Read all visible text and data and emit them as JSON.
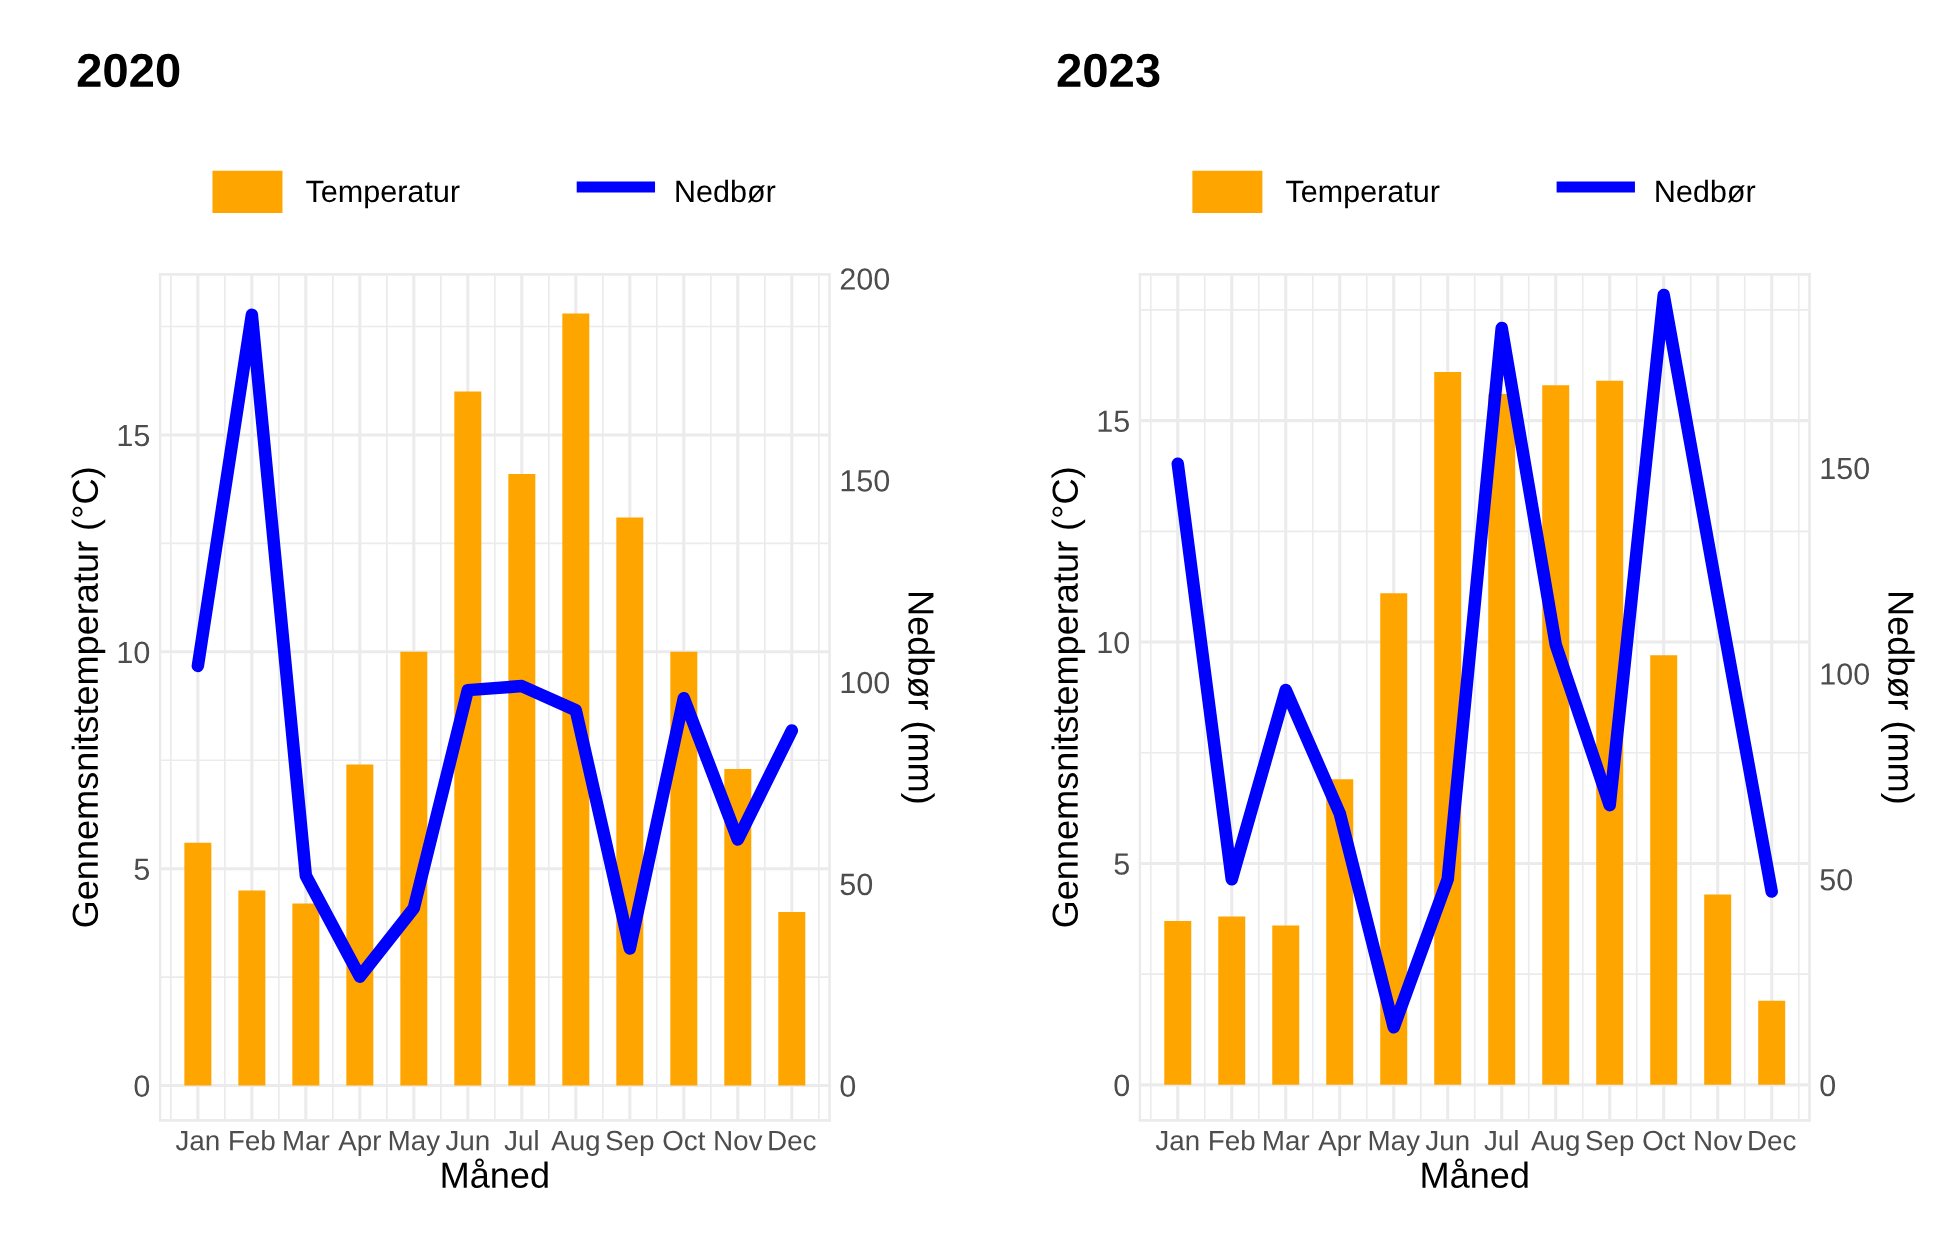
{
  "chart_data": [
    {
      "type": "bar",
      "title": "2020",
      "xlabel": "Måned",
      "ylabel": "Gennemsnitstemperatur (°C)",
      "y2label": "Nedbør (mm)",
      "categories": [
        "Jan",
        "Feb",
        "Mar",
        "Apr",
        "May",
        "Jun",
        "Jul",
        "Aug",
        "Sep",
        "Oct",
        "Nov",
        "Dec"
      ],
      "series": [
        {
          "name": "Temperatur",
          "color": "#ffa500",
          "values": [
            5.6,
            4.5,
            4.2,
            7.4,
            10.0,
            16.0,
            14.1,
            17.8,
            13.1,
            10.0,
            7.3,
            4.0
          ]
        },
        {
          "name": "Nedbør",
          "type": "line",
          "axis": "y2",
          "color": "#0000ff",
          "values": [
            104,
            191,
            52,
            27,
            44,
            98,
            99,
            93,
            34,
            96,
            61,
            88
          ]
        }
      ],
      "ylim": [
        -0.8,
        18.7
      ],
      "yticks": [
        0,
        5,
        10,
        15
      ],
      "y2lim": [
        -8.6,
        201
      ],
      "y2ticks": [
        0,
        50,
        100,
        150,
        200
      ],
      "grid": true,
      "legend": "top",
      "marker": "none",
      "line_style": "solid"
    },
    {
      "type": "bar",
      "title": "2023",
      "xlabel": "Måned",
      "ylabel": "Gennemsnitstemperatur (°C)",
      "y2label": "Nedbør (mm)",
      "categories": [
        "Jan",
        "Feb",
        "Mar",
        "Apr",
        "May",
        "Jun",
        "Jul",
        "Aug",
        "Sep",
        "Oct",
        "Nov",
        "Dec"
      ],
      "series": [
        {
          "name": "Temperatur",
          "color": "#ffa500",
          "values": [
            3.7,
            3.8,
            3.6,
            6.9,
            11.1,
            16.1,
            15.6,
            15.8,
            15.9,
            9.7,
            4.3,
            1.9
          ]
        },
        {
          "name": "Nedbør",
          "type": "line",
          "axis": "y2",
          "color": "#0000ff",
          "values": [
            151,
            50,
            96,
            66,
            14,
            50,
            184,
            107,
            68,
            192,
            119,
            47
          ]
        }
      ],
      "ylim": [
        -0.8,
        18.3
      ],
      "yticks": [
        0,
        5,
        10,
        15
      ],
      "y2lim": [
        -8.6,
        197
      ],
      "y2ticks": [
        0,
        50,
        100,
        150
      ],
      "grid": true,
      "legend": "top",
      "marker": "none",
      "line_style": "solid"
    }
  ]
}
